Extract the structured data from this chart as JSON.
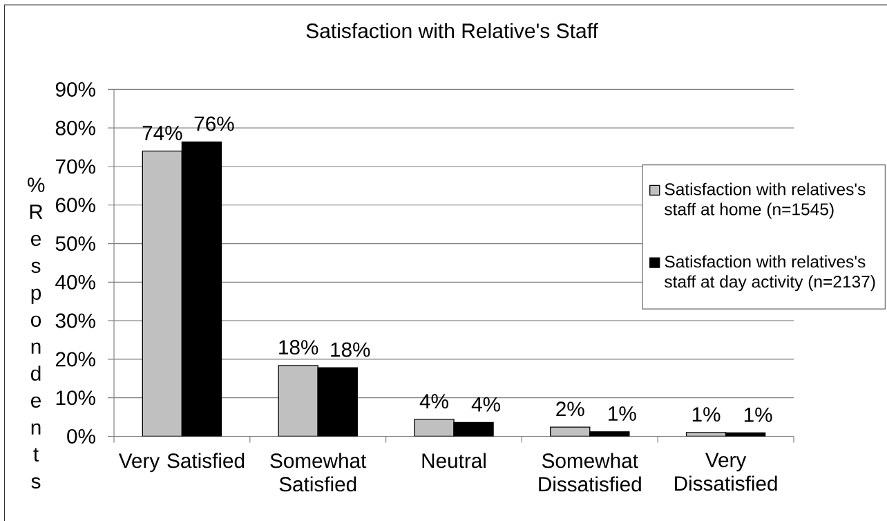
{
  "chart_data": {
    "type": "bar",
    "title": "Satisfaction with Relative's Staff",
    "ylabel": "% Respondents",
    "categories": [
      "Very Satisfied",
      "Somewhat Satisfied",
      "Neutral",
      "Somewhat Dissatisfied",
      "Very Dissatisfied"
    ],
    "series": [
      {
        "name": "Satisfaction with relatives's staff at home (n=1545)",
        "color": "#c0c0c0",
        "values": [
          74.0,
          18.4,
          4.4,
          2.4,
          1.0
        ],
        "value_labels": [
          "74%",
          "18%",
          "4%",
          "2%",
          "1%"
        ]
      },
      {
        "name": "Satisfaction with relatives's staff at day activity (n=2137)",
        "color": "#000000",
        "values": [
          76.4,
          17.8,
          3.6,
          1.2,
          0.9
        ],
        "value_labels": [
          "76%",
          "18%",
          "4%",
          "1%",
          "1%"
        ]
      }
    ],
    "ylim": [
      0,
      90
    ],
    "yticks": [
      {
        "value": 0,
        "label": "0%"
      },
      {
        "value": 10,
        "label": "10%"
      },
      {
        "value": 20,
        "label": "20%"
      },
      {
        "value": 30,
        "label": "30%"
      },
      {
        "value": 40,
        "label": "40%"
      },
      {
        "value": 50,
        "label": "50%"
      },
      {
        "value": 60,
        "label": "60%"
      },
      {
        "value": 70,
        "label": "70%"
      },
      {
        "value": 80,
        "label": "80%"
      },
      {
        "value": 90,
        "label": "90%"
      }
    ],
    "grid": "y",
    "legend": "right"
  }
}
